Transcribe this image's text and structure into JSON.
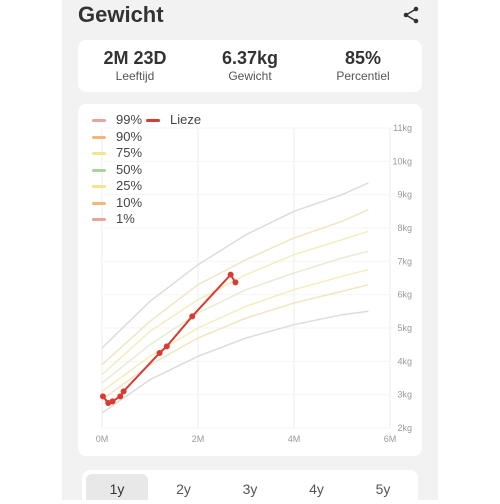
{
  "header": {
    "title": "Gewicht"
  },
  "stats": [
    {
      "value": "2M 23D",
      "label": "Leeftijd"
    },
    {
      "value": "6.37kg",
      "label": "Gewicht"
    },
    {
      "value": "85%",
      "label": "Percentiel"
    }
  ],
  "legend": {
    "percentiles": [
      {
        "label": "99%",
        "color": "#e8a39b"
      },
      {
        "label": "90%",
        "color": "#f3b77a"
      },
      {
        "label": "75%",
        "color": "#f4e48a"
      },
      {
        "label": "50%",
        "color": "#a9d4a0"
      },
      {
        "label": "25%",
        "color": "#f4e48a"
      },
      {
        "label": "10%",
        "color": "#f3b77a"
      },
      {
        "label": "1%",
        "color": "#e8a39b"
      }
    ],
    "child": {
      "label": "Lieze",
      "color": "#d93b31"
    }
  },
  "tabs": [
    {
      "label": "1y",
      "active": true
    },
    {
      "label": "2y",
      "active": false
    },
    {
      "label": "3y",
      "active": false
    },
    {
      "label": "4y",
      "active": false
    },
    {
      "label": "5y",
      "active": false
    }
  ],
  "chart_data": {
    "type": "line",
    "x_ticks": [
      "0M",
      "2M",
      "4M",
      "6M"
    ],
    "y_ticks": [
      "2kg",
      "3kg",
      "4kg",
      "5kg",
      "6kg",
      "7kg",
      "8kg",
      "9kg",
      "10kg",
      "11kg"
    ],
    "xlim": [
      0,
      6
    ],
    "ylim": [
      2,
      11
    ],
    "percentile_curves": [
      {
        "name": "99%",
        "color": "#dcdcdc",
        "points": [
          [
            0,
            4.4
          ],
          [
            1,
            5.8
          ],
          [
            2,
            6.9
          ],
          [
            3,
            7.8
          ],
          [
            4,
            8.5
          ],
          [
            5,
            9.0
          ],
          [
            5.55,
            9.35
          ]
        ]
      },
      {
        "name": "90%",
        "color": "#efe6c2",
        "points": [
          [
            0,
            3.9
          ],
          [
            1,
            5.2
          ],
          [
            2,
            6.3
          ],
          [
            3,
            7.05
          ],
          [
            4,
            7.7
          ],
          [
            5,
            8.2
          ],
          [
            5.55,
            8.55
          ]
        ]
      },
      {
        "name": "75%",
        "color": "#f3eebe",
        "points": [
          [
            0,
            3.6
          ],
          [
            1,
            4.9
          ],
          [
            2,
            5.85
          ],
          [
            3,
            6.6
          ],
          [
            4,
            7.2
          ],
          [
            5,
            7.65
          ],
          [
            5.55,
            7.9
          ]
        ]
      },
      {
        "name": "50%",
        "color": "#e3eed5",
        "points": [
          [
            0,
            3.35
          ],
          [
            1,
            4.5
          ],
          [
            2,
            5.45
          ],
          [
            3,
            6.15
          ],
          [
            4,
            6.65
          ],
          [
            5,
            7.1
          ],
          [
            5.55,
            7.3
          ]
        ]
      },
      {
        "name": "25%",
        "color": "#f3eebe",
        "points": [
          [
            0,
            3.1
          ],
          [
            1,
            4.15
          ],
          [
            2,
            5.0
          ],
          [
            3,
            5.65
          ],
          [
            4,
            6.15
          ],
          [
            5,
            6.55
          ],
          [
            5.55,
            6.75
          ]
        ]
      },
      {
        "name": "10%",
        "color": "#efe6c2",
        "points": [
          [
            0,
            2.85
          ],
          [
            1,
            3.9
          ],
          [
            2,
            4.7
          ],
          [
            3,
            5.3
          ],
          [
            4,
            5.75
          ],
          [
            5,
            6.1
          ],
          [
            5.55,
            6.3
          ]
        ]
      },
      {
        "name": "1%",
        "color": "#dcdcdc",
        "points": [
          [
            0,
            2.45
          ],
          [
            1,
            3.45
          ],
          [
            2,
            4.15
          ],
          [
            3,
            4.7
          ],
          [
            4,
            5.1
          ],
          [
            5,
            5.4
          ],
          [
            5.55,
            5.5
          ]
        ]
      }
    ],
    "series": [
      {
        "name": "Lieze",
        "color": "#d93b31",
        "points": [
          [
            0.02,
            2.95
          ],
          [
            0.13,
            2.75
          ],
          [
            0.22,
            2.8
          ],
          [
            0.38,
            2.95
          ],
          [
            0.45,
            3.1
          ],
          [
            1.2,
            4.25
          ],
          [
            1.35,
            4.45
          ],
          [
            1.88,
            5.35
          ],
          [
            2.68,
            6.6
          ],
          [
            2.78,
            6.37
          ]
        ]
      }
    ]
  }
}
